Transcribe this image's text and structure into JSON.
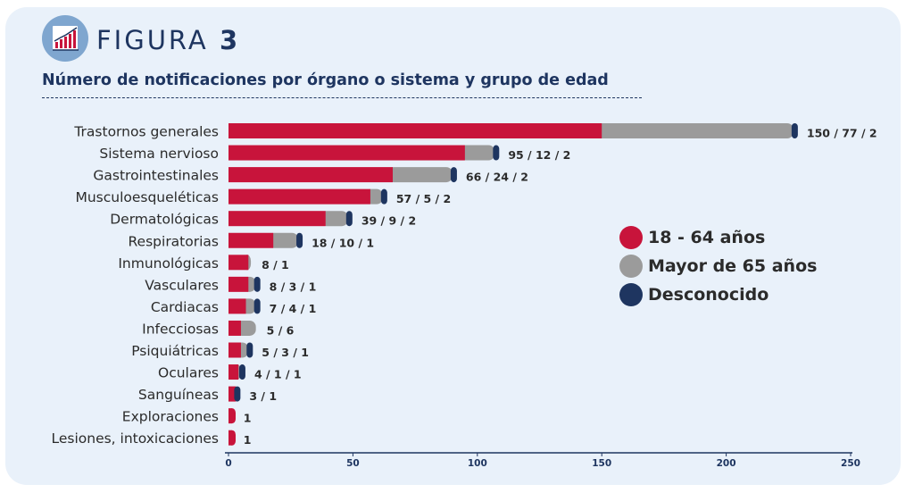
{
  "header": {
    "icon": "bar-chart-icon",
    "figure_word": "FIGURA",
    "figure_number": "3",
    "subtitle": "Número de notificaciones por órgano o sistema y grupo de edad"
  },
  "colors": {
    "age_18_64": "#c8143b",
    "age_65_plus": "#9b9b9b",
    "unknown": "#1e3560",
    "text": "#2b2b2b",
    "axis": "#1e3560",
    "card_background": "#e9f1fa"
  },
  "legend": {
    "items": [
      {
        "label": "18 - 64 años",
        "color": "#c8143b"
      },
      {
        "label": "Mayor de 65 años",
        "color": "#9b9b9b"
      },
      {
        "label": "Desconocido",
        "color": "#1e3560"
      }
    ],
    "placement": "right-middle"
  },
  "chart_data": {
    "type": "bar",
    "orientation": "horizontal",
    "stacked": true,
    "title": "Número de notificaciones por órgano o sistema y grupo de edad",
    "categories": [
      "Trastornos generales",
      "Sistema nervioso",
      "Gastrointestinales",
      "Musculoesqueléticas",
      "Dermatológicas",
      "Respiratorias",
      "Inmunológicas",
      "Vasculares",
      "Cardiacas",
      "Infecciosas",
      "Psiquiátricas",
      "Oculares",
      "Sanguíneas",
      "Exploraciones",
      "Lesiones, intoxicaciones"
    ],
    "series": [
      {
        "name": "18 - 64 años",
        "color": "#c8143b",
        "values": [
          150,
          95,
          66,
          57,
          39,
          18,
          8,
          8,
          7,
          5,
          5,
          4,
          3,
          1,
          1
        ]
      },
      {
        "name": "Mayor de 65 años",
        "color": "#9b9b9b",
        "values": [
          77,
          12,
          24,
          5,
          9,
          10,
          1,
          3,
          4,
          6,
          3,
          1,
          0,
          0,
          0
        ]
      },
      {
        "name": "Desconocido",
        "color": "#1e3560",
        "values": [
          2,
          2,
          2,
          2,
          2,
          1,
          0,
          1,
          1,
          0,
          1,
          1,
          1,
          0,
          0
        ]
      }
    ],
    "data_labels": [
      "150 / 77 / 2",
      "95 / 12 / 2",
      "66 / 24 / 2",
      "57 / 5 / 2",
      "39 / 9 / 2",
      "18 / 10 / 1",
      "8 / 1",
      "8 / 3 / 1",
      "7 / 4 / 1",
      "5 / 6",
      "5 / 3 / 1",
      "4 / 1 / 1",
      "3 / 1",
      "1",
      "1"
    ],
    "x_ticks": [
      0,
      50,
      100,
      150,
      200,
      250
    ],
    "xlim": [
      0,
      250
    ],
    "xlabel": "",
    "ylabel": "",
    "grid": false
  }
}
